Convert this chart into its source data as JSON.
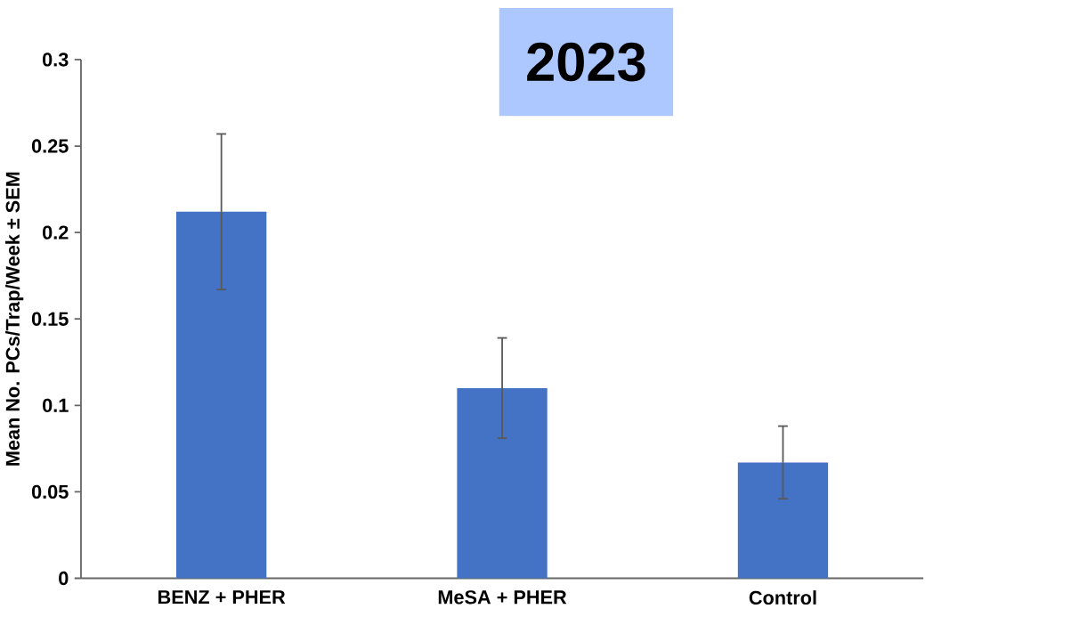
{
  "chart_data": {
    "type": "bar",
    "title": "2023",
    "ylabel": "Mean No. PCs/Trap/Week ± SEM",
    "categories": [
      "BENZ + PHER",
      "MeSA + PHER",
      "Control"
    ],
    "values": [
      0.212,
      0.11,
      0.067
    ],
    "errors": [
      0.045,
      0.029,
      0.021
    ],
    "color": "#4472c4",
    "ylim": [
      0,
      0.3
    ],
    "yticks": [
      0,
      0.05,
      0.1,
      0.15,
      0.2,
      0.25,
      0.3
    ],
    "grid": false
  }
}
